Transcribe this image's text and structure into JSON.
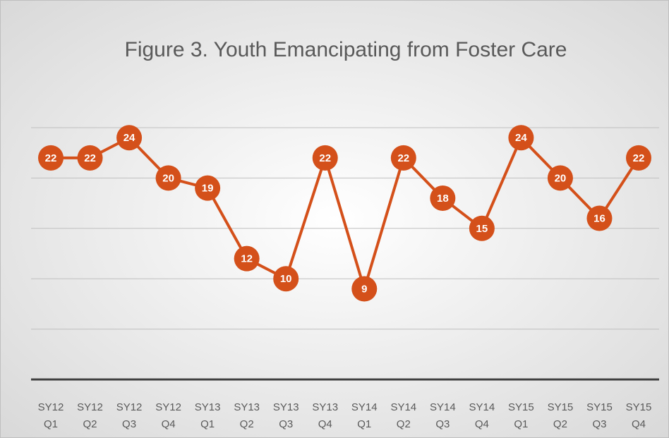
{
  "chart_data": {
    "type": "line",
    "title": "Figure 3. Youth Emancipating from Foster Care",
    "categories": [
      [
        "SY12",
        "Q1"
      ],
      [
        "SY12",
        "Q2"
      ],
      [
        "SY12",
        "Q3"
      ],
      [
        "SY12",
        "Q4"
      ],
      [
        "SY13",
        "Q1"
      ],
      [
        "SY13",
        "Q2"
      ],
      [
        "SY13",
        "Q3"
      ],
      [
        "SY13",
        "Q4"
      ],
      [
        "SY14",
        "Q1"
      ],
      [
        "SY14",
        "Q2"
      ],
      [
        "SY14",
        "Q3"
      ],
      [
        "SY14",
        "Q4"
      ],
      [
        "SY15",
        "Q1"
      ],
      [
        "SY15",
        "Q2"
      ],
      [
        "SY15",
        "Q3"
      ],
      [
        "SY15",
        "Q4"
      ]
    ],
    "values": [
      22,
      22,
      24,
      20,
      19,
      12,
      10,
      22,
      9,
      22,
      18,
      15,
      24,
      20,
      16,
      22
    ],
    "color": "#d4501a",
    "ylim": [
      0,
      25
    ],
    "yticks": [
      0,
      5,
      10,
      15,
      20,
      25
    ],
    "grid": true
  }
}
